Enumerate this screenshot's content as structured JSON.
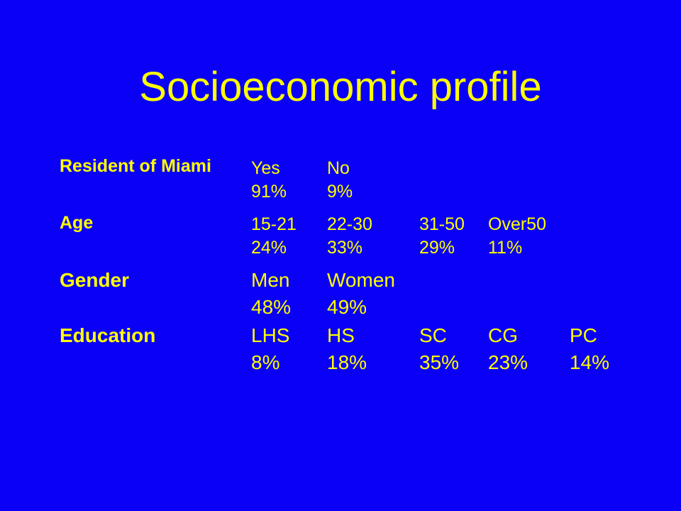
{
  "slide": {
    "title": "Socioeconomic profile",
    "background_color": "#0a00f5",
    "text_color": "#ffff00"
  },
  "rows": [
    {
      "label": "Resident of Miami",
      "cells": [
        {
          "header": "Yes",
          "value": "91%"
        },
        {
          "header": "No",
          "value": "9%"
        }
      ]
    },
    {
      "label": "Age",
      "cells": [
        {
          "header": "15-21",
          "value": "24%"
        },
        {
          "header": "22-30",
          "value": "33%"
        },
        {
          "header": "31-50",
          "value": "29%"
        },
        {
          "header": "Over50",
          "value": "11%"
        }
      ]
    },
    {
      "label": "Gender",
      "cells": [
        {
          "header": "Men",
          "value": "48%"
        },
        {
          "header": "Women",
          "value": "49%"
        }
      ]
    },
    {
      "label": "Education",
      "cells": [
        {
          "header": "LHS",
          "value": "8%"
        },
        {
          "header": "HS",
          "value": "18%"
        },
        {
          "header": "SC",
          "value": "35%"
        },
        {
          "header": "CG",
          "value": "23%"
        },
        {
          "header": "PC",
          "value": "14%"
        }
      ]
    }
  ]
}
